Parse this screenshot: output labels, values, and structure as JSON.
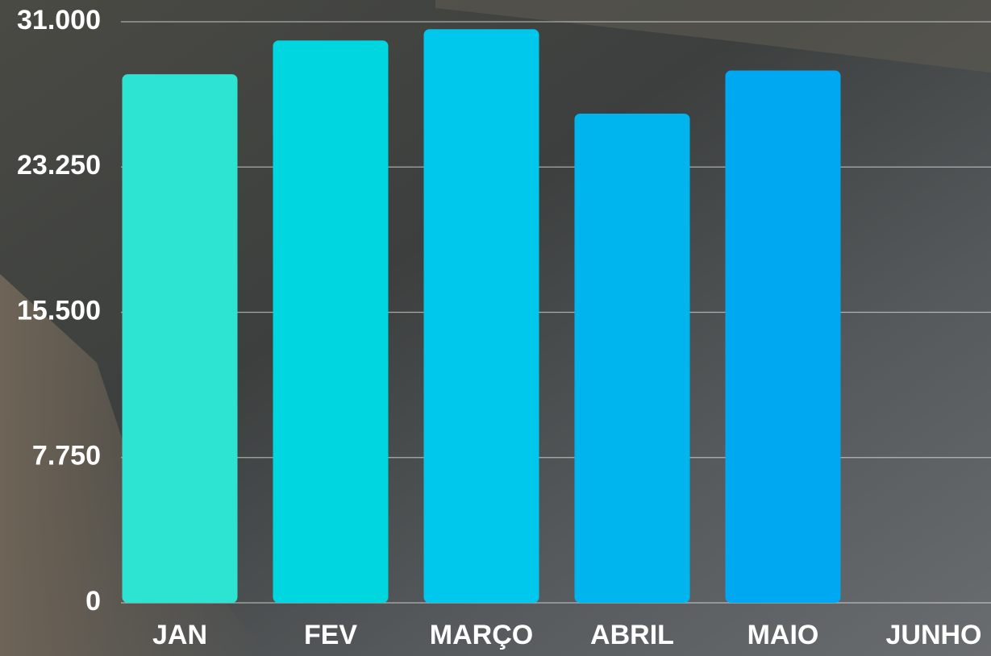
{
  "chart_data": {
    "type": "bar",
    "categories": [
      "JAN",
      "FEV",
      "MARÇO",
      "ABRIL",
      "MAIO",
      "JUNHO"
    ],
    "values": [
      28200,
      30000,
      30600,
      26100,
      28400,
      null
    ],
    "colors": [
      "#2de3d2",
      "#00d6df",
      "#00c8ec",
      "#00b4ee",
      "#00a8f2",
      "#009ef4"
    ],
    "ylim": [
      0,
      31000
    ],
    "yticks": [
      0,
      {
        "value": 7750,
        "label": "7.750"
      },
      {
        "value": 15500,
        "label": "15.500"
      },
      {
        "value": 23250,
        "label": "23.250"
      },
      {
        "value": 31000,
        "label": "31.000"
      }
    ],
    "grid": true
  }
}
